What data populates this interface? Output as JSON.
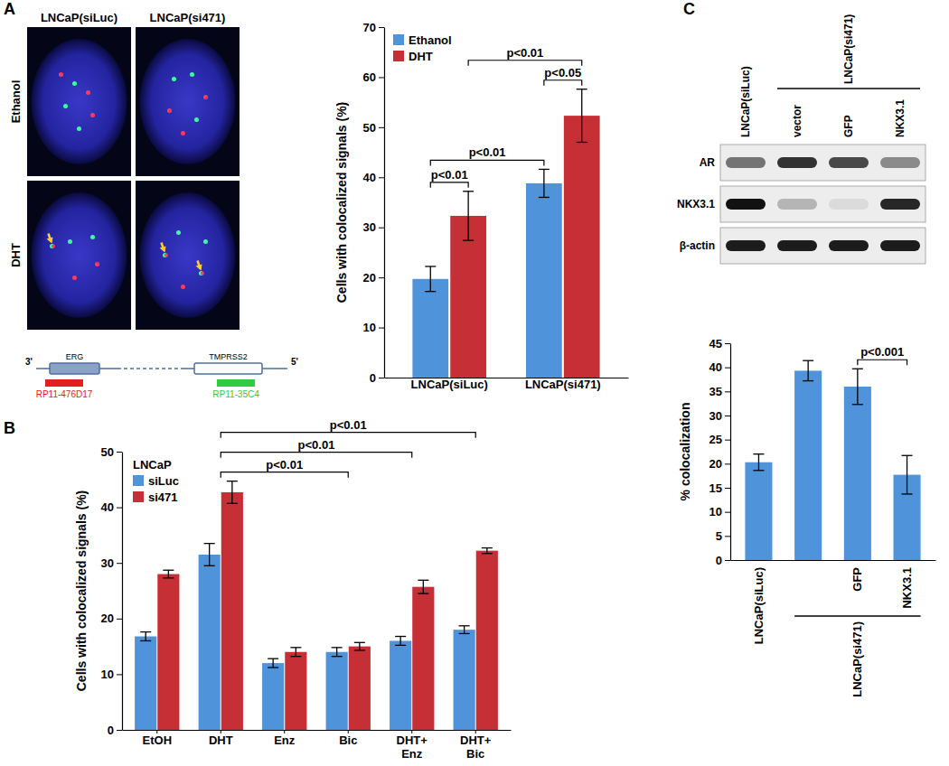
{
  "chart_data": [
    {
      "type": "bar",
      "y_label": "Cells with colocalized signals (%)",
      "categories": [
        "LNCaP(siLuc)",
        "LNCaP(si471)"
      ],
      "series": [
        {
          "name": "Ethanol",
          "color": "#4f94db",
          "values": [
            19.7,
            38.8
          ],
          "errors": [
            2.5,
            2.8
          ]
        },
        {
          "name": "DHT",
          "color": "#c62f36",
          "values": [
            32.3,
            52.3
          ],
          "errors": [
            4.9,
            5.3
          ]
        }
      ],
      "ylim": [
        0,
        70
      ],
      "yticks": [
        0,
        10,
        20,
        30,
        40,
        50,
        60,
        70
      ],
      "legend": "top-left",
      "annotations": [
        {
          "text": "p<0.01",
          "from": [
            "LNCaP(siLuc)",
            "Ethanol"
          ],
          "to": [
            "LNCaP(siLuc)",
            "DHT"
          ]
        },
        {
          "text": "p<0.01",
          "from": [
            "LNCaP(siLuc)",
            "Ethanol"
          ],
          "to": [
            "LNCaP(si471)",
            "Ethanol"
          ]
        },
        {
          "text": "p<0.05",
          "from": [
            "LNCaP(si471)",
            "Ethanol"
          ],
          "to": [
            "LNCaP(si471)",
            "DHT"
          ]
        },
        {
          "text": "p<0.01",
          "from": [
            "LNCaP(siLuc)",
            "DHT"
          ],
          "to": [
            "LNCaP(si471)",
            "DHT"
          ]
        }
      ]
    },
    {
      "type": "bar",
      "y_label": "Cells with colocalized signals (%)",
      "categories": [
        "EtOH",
        "DHT",
        "Enz",
        "Bic",
        "DHT+\nEnz",
        "DHT+\nBic"
      ],
      "legend_title": "LNCaP",
      "series": [
        {
          "name": "siLuc",
          "color": "#4f94db",
          "values": [
            16.8,
            31.5,
            12,
            14,
            16,
            18
          ],
          "errors": [
            0.8,
            2,
            0.8,
            0.8,
            0.8,
            0.7
          ]
        },
        {
          "name": "si471",
          "color": "#c62f36",
          "values": [
            28,
            42.7,
            14,
            15,
            25.7,
            32.2
          ],
          "errors": [
            0.7,
            2,
            0.8,
            0.7,
            1.2,
            0.5
          ]
        }
      ],
      "ylim": [
        0,
        50
      ],
      "yticks": [
        0,
        10,
        20,
        30,
        40,
        50
      ],
      "legend": "top-left",
      "annotations": [
        {
          "text": "p<0.01",
          "from": [
            "DHT"
          ],
          "to": [
            "Bic"
          ]
        },
        {
          "text": "p<0.01",
          "from": [
            "DHT"
          ],
          "to": [
            "DHT+\nEnz"
          ]
        },
        {
          "text": "p<0.01",
          "from": [
            "DHT"
          ],
          "to": [
            "DHT+\nBic"
          ]
        }
      ]
    },
    {
      "type": "bar",
      "y_label": "% colocalization",
      "categories": [
        "LNCaP(siLuc)",
        null,
        "GFP",
        "NKX3.1"
      ],
      "values": [
        20.3,
        39.3,
        36,
        17.7
      ],
      "errors": [
        1.7,
        2.1,
        3.7,
        4
      ],
      "color": "#4f94db",
      "ylim": [
        0,
        45
      ],
      "yticks": [
        0,
        5,
        10,
        15,
        20,
        25,
        30,
        35,
        40,
        45
      ],
      "groups": [
        {
          "label": "LNCaP(si471)",
          "span": [
            1,
            3
          ]
        }
      ],
      "annotations": [
        {
          "text": "p<0.001",
          "from": [
            "GFP"
          ],
          "to": [
            "NKX3.1"
          ]
        }
      ]
    }
  ],
  "figure": {
    "panel_labels": [
      "A",
      "B",
      "C"
    ],
    "images": {
      "columns": [
        "LNCaP(siLuc)",
        "LNCaP(si471)"
      ],
      "rows": [
        "Ethanol",
        "DHT"
      ]
    },
    "schematic": {
      "ends": [
        "3'",
        "5'"
      ],
      "genes": [
        "ERG",
        "TMPRSS2"
      ],
      "probes": [
        {
          "label": "RP11-476D17",
          "color": "#e02020"
        },
        {
          "label": "RP11-35C4",
          "color": "#2ecc40"
        }
      ]
    },
    "blot": {
      "lanes": [
        "LNCaP(siLuc)",
        "vector",
        "GFP",
        "NKX3.1"
      ],
      "lane_group": {
        "label": "LNCaP(si471)",
        "span": [
          1,
          3
        ]
      },
      "rows": [
        {
          "label": "AR",
          "intensity": [
            0.55,
            0.85,
            0.75,
            0.45
          ]
        },
        {
          "label": "NKX3.1",
          "intensity": [
            1,
            0.25,
            0.08,
            0.9
          ]
        },
        {
          "label": "β-actin",
          "intensity": [
            0.95,
            0.95,
            0.95,
            0.95
          ]
        }
      ]
    }
  }
}
